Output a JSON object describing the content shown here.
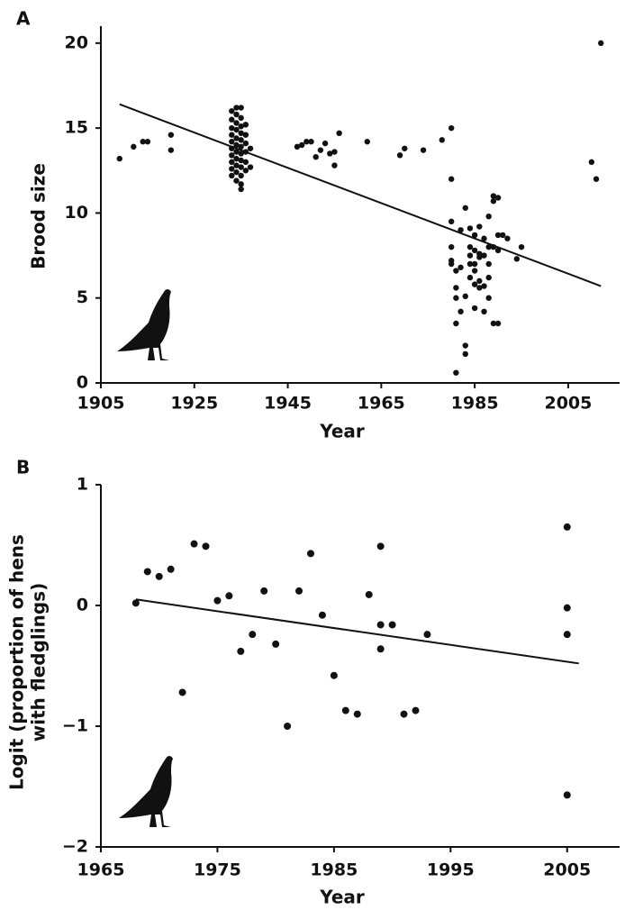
{
  "chart_data": [
    {
      "type": "scatter",
      "panel_label": "A",
      "xlabel": "Year",
      "ylabel": "Brood size",
      "xlim": [
        1905,
        2016
      ],
      "ylim": [
        0,
        21
      ],
      "xticks": [
        1905,
        1925,
        1945,
        1965,
        1985,
        2005
      ],
      "yticks": [
        0,
        5,
        10,
        15,
        20
      ],
      "color": "#111111",
      "x": [
        1909,
        1912,
        1914,
        1915,
        1920,
        1920,
        1933,
        1933,
        1933,
        1933,
        1933,
        1933,
        1933,
        1933,
        1933,
        1933,
        1934,
        1934,
        1934,
        1934,
        1934,
        1934,
        1934,
        1934,
        1934,
        1934,
        1934,
        1935,
        1935,
        1935,
        1935,
        1935,
        1935,
        1935,
        1935,
        1935,
        1935,
        1935,
        1935,
        1936,
        1936,
        1936,
        1936,
        1936,
        1936,
        1937,
        1937,
        1947,
        1948,
        1949,
        1950,
        1951,
        1952,
        1953,
        1954,
        1955,
        1955,
        1956,
        1962,
        1969,
        1970,
        1974,
        1978,
        1980,
        1980,
        1980,
        1980,
        1980,
        1980,
        1981,
        1981,
        1981,
        1981,
        1981,
        1982,
        1982,
        1982,
        1983,
        1983,
        1983,
        1983,
        1984,
        1984,
        1984,
        1984,
        1984,
        1985,
        1985,
        1985,
        1985,
        1985,
        1985,
        1986,
        1986,
        1986,
        1986,
        1986,
        1987,
        1987,
        1987,
        1987,
        1988,
        1988,
        1988,
        1988,
        1988,
        1989,
        1989,
        1989,
        1989,
        1990,
        1990,
        1990,
        1990,
        1991,
        1992,
        1994,
        1995,
        2010,
        2011,
        2012
      ],
      "values": [
        13.2,
        13.9,
        14.2,
        14.2,
        14.6,
        13.7,
        16.0,
        15.5,
        15.0,
        14.6,
        14.2,
        13.8,
        13.4,
        13.0,
        12.6,
        12.2,
        16.2,
        15.8,
        15.3,
        14.9,
        14.4,
        14.0,
        13.6,
        13.2,
        12.8,
        12.4,
        11.9,
        16.2,
        15.6,
        15.1,
        14.7,
        14.3,
        13.9,
        13.5,
        13.1,
        12.7,
        12.2,
        11.7,
        11.4,
        15.2,
        14.6,
        14.1,
        13.6,
        13.0,
        12.5,
        13.8,
        12.7,
        13.9,
        14.0,
        14.2,
        14.2,
        13.3,
        13.7,
        14.1,
        13.5,
        12.8,
        13.6,
        14.7,
        14.2,
        13.4,
        13.8,
        13.7,
        14.3,
        15.0,
        12.0,
        9.5,
        8.0,
        7.2,
        7.0,
        6.6,
        5.6,
        5.0,
        3.5,
        0.6,
        9.0,
        6.8,
        4.2,
        10.3,
        5.1,
        2.2,
        1.7,
        9.1,
        8.0,
        7.5,
        7.0,
        6.2,
        8.7,
        7.8,
        7.0,
        6.6,
        5.8,
        4.4,
        9.2,
        7.6,
        7.4,
        6.0,
        5.6,
        8.5,
        7.5,
        5.7,
        4.2,
        9.8,
        8.0,
        7.0,
        6.2,
        5.0,
        11.0,
        10.7,
        8.0,
        3.5,
        10.9,
        8.7,
        7.8,
        3.5,
        8.7,
        8.5,
        7.3,
        8.0,
        13.0,
        12.0,
        20.0
      ],
      "trend_line": {
        "x": [
          1909,
          2012
        ],
        "y": [
          16.4,
          5.7
        ]
      }
    },
    {
      "type": "scatter",
      "panel_label": "B",
      "xlabel": "Year",
      "ylabel": [
        "Logit (proportion of hens",
        "with fledglings)"
      ],
      "xlim": [
        1965,
        2009.5
      ],
      "ylim": [
        -2,
        1
      ],
      "xticks": [
        1965,
        1975,
        1985,
        1995,
        2005
      ],
      "yticks": [
        {
          "value": -2,
          "label": "−2"
        },
        {
          "value": -1,
          "label": "−1"
        },
        0,
        1
      ],
      "color": "#111111",
      "x": [
        1968,
        1969,
        1970,
        1971,
        1972,
        1973,
        1974,
        1975,
        1976,
        1977,
        1978,
        1979,
        1980,
        1981,
        1982,
        1983,
        1984,
        1985,
        1986,
        1987,
        1988,
        1989,
        1989,
        1989,
        1990,
        1991,
        1992,
        1993,
        2005,
        2005,
        2005,
        2005
      ],
      "values": [
        0.02,
        0.28,
        0.24,
        0.3,
        -0.72,
        0.51,
        0.49,
        0.04,
        0.08,
        -0.38,
        -0.24,
        0.12,
        -0.32,
        -1.0,
        0.12,
        0.43,
        -0.08,
        -0.58,
        -0.87,
        -0.9,
        0.09,
        0.49,
        -0.16,
        -0.36,
        -0.16,
        -0.9,
        -0.87,
        -0.24,
        0.65,
        -0.02,
        -0.24,
        -1.57
      ],
      "trend_line": {
        "x": [
          1968,
          2006
        ],
        "y": [
          0.05,
          -0.48
        ]
      }
    }
  ]
}
